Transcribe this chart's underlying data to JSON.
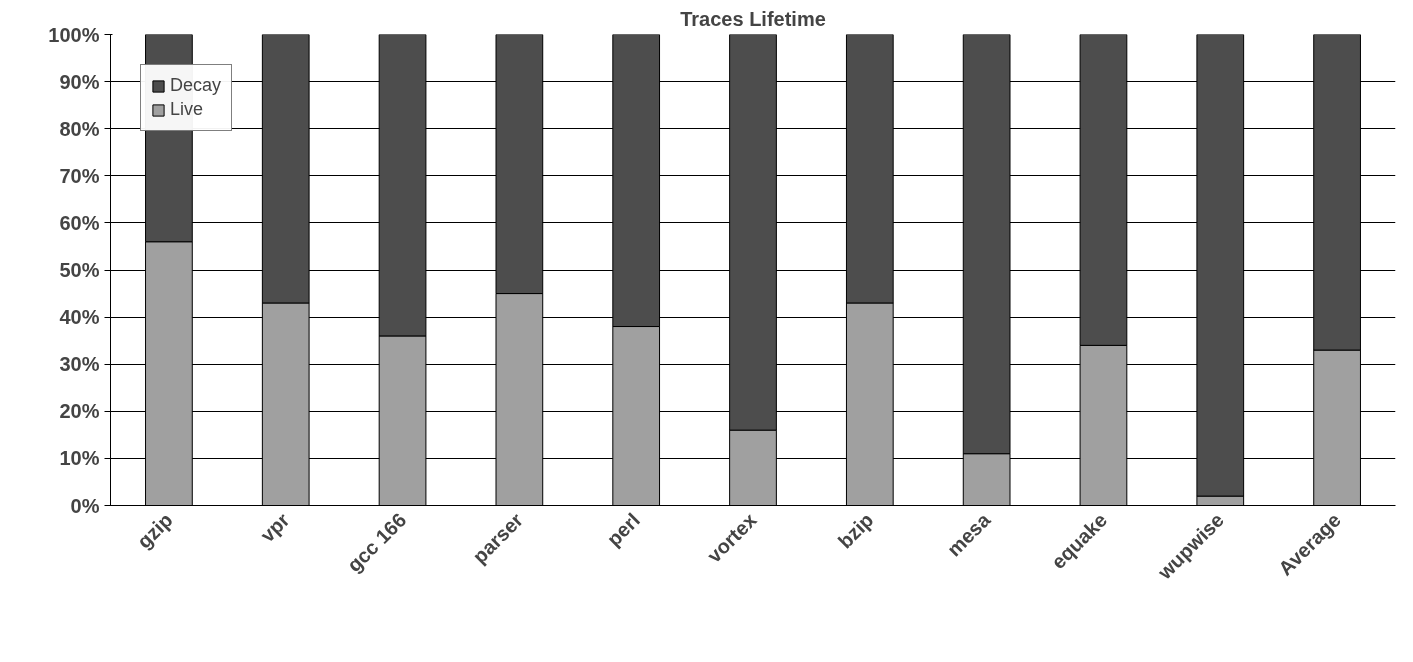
{
  "chart_data": {
    "type": "bar",
    "title": "Traces Lifetime",
    "stacked": true,
    "categories": [
      "gzip",
      "vpr",
      "gcc 166",
      "parser",
      "perl",
      "vortex",
      "bzip",
      "mesa",
      "equake",
      "wupwise",
      "Average"
    ],
    "series": [
      {
        "name": "Live",
        "color": "#a0a0a0",
        "values": [
          56,
          43,
          36,
          45,
          38,
          16,
          43,
          11,
          34,
          2,
          33
        ]
      },
      {
        "name": "Decay",
        "color": "#4d4d4d",
        "values": [
          44,
          57,
          64,
          55,
          62,
          84,
          57,
          89,
          66,
          98,
          67
        ]
      }
    ],
    "ylim": [
      0,
      100
    ],
    "yticks": [
      {
        "value": 0,
        "label": "0%"
      },
      {
        "value": 10,
        "label": "10%"
      },
      {
        "value": 20,
        "label": "20%"
      },
      {
        "value": 30,
        "label": "30%"
      },
      {
        "value": 40,
        "label": "40%"
      },
      {
        "value": 50,
        "label": "50%"
      },
      {
        "value": 60,
        "label": "60%"
      },
      {
        "value": 70,
        "label": "70%"
      },
      {
        "value": 80,
        "label": "80%"
      },
      {
        "value": 90,
        "label": "90%"
      },
      {
        "value": 100,
        "label": "100%"
      }
    ],
    "grid": "y",
    "legend": "top left"
  }
}
